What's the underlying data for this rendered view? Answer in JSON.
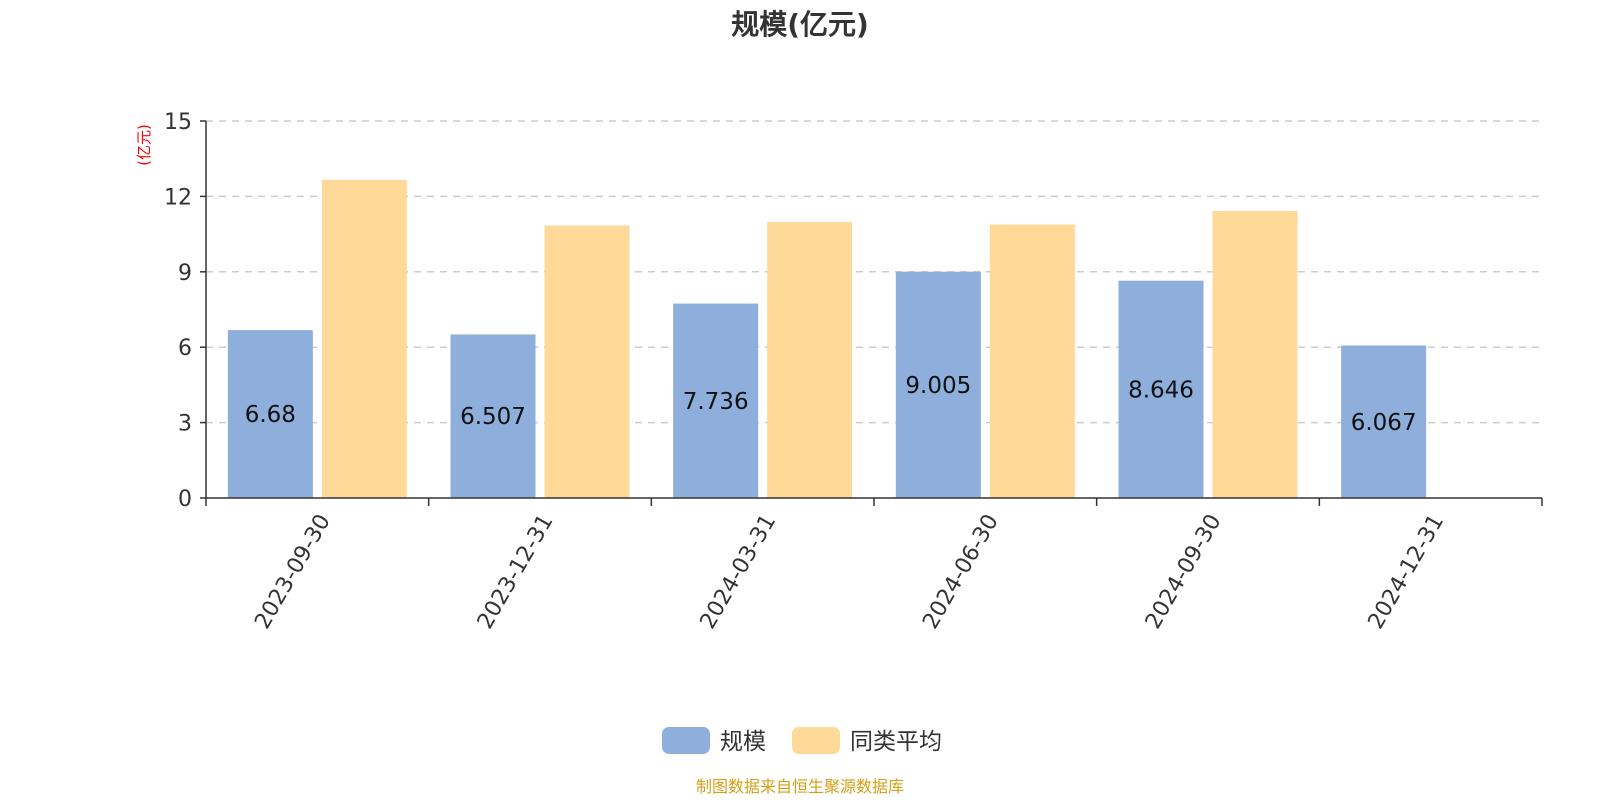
{
  "chart_data": {
    "type": "bar",
    "title": "规模(亿元)",
    "ylabel": "(亿元)",
    "xlabel": "",
    "categories": [
      "2023-09-30",
      "2023-12-31",
      "2024-03-31",
      "2024-06-30",
      "2024-09-30",
      "2024-12-31"
    ],
    "series": [
      {
        "name": "规模",
        "color": "#8eaedb",
        "values": [
          6.68,
          6.507,
          7.736,
          9.005,
          8.646,
          6.067
        ],
        "data_labels": [
          "6.68",
          "6.507",
          "7.736",
          "9.005",
          "8.646",
          "6.067"
        ]
      },
      {
        "name": "同类平均",
        "color": "#fed998",
        "values": [
          12.66,
          10.84,
          10.98,
          10.88,
          11.42,
          null
        ]
      }
    ],
    "ylim": [
      0,
      15
    ],
    "yticks": [
      0,
      3,
      6,
      9,
      12,
      15
    ],
    "grid": true,
    "legend_position": "bottom-center"
  },
  "source_note": "制图数据来自恒生聚源数据库",
  "colors": {
    "title": "#333333",
    "axis": "#333333",
    "ylabel": "#ff0000",
    "grid": "#cccccc",
    "source": "#d4a017"
  }
}
